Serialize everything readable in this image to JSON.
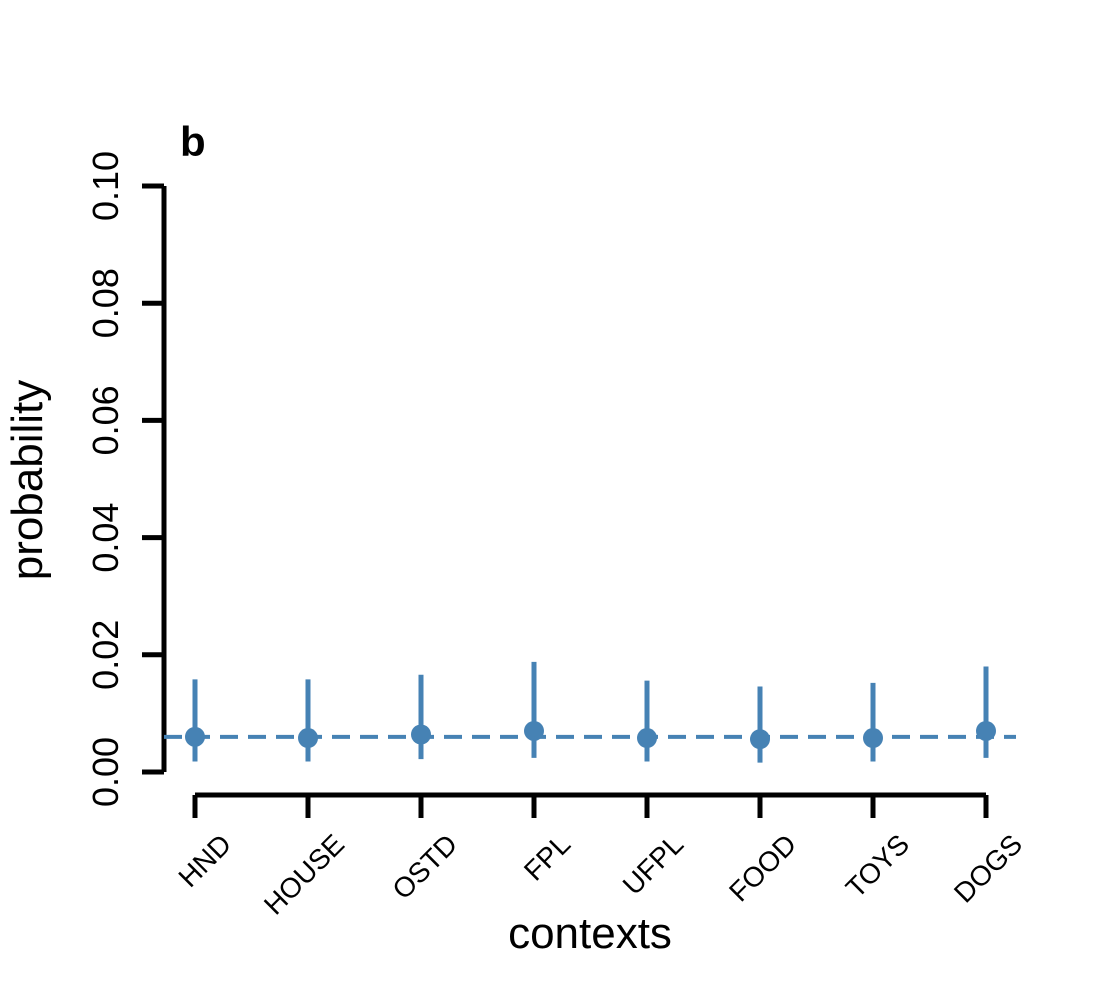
{
  "chart_data": {
    "type": "scatter",
    "panel_label": "b",
    "xlabel": "contexts",
    "ylabel": "probability",
    "ylim": [
      0,
      0.1
    ],
    "yticks": [
      "0.00",
      "0.02",
      "0.04",
      "0.06",
      "0.08",
      "0.10"
    ],
    "categories": [
      "HND",
      "HOUSE",
      "OSTD",
      "FPL",
      "UFPL",
      "FOOD",
      "TOYS",
      "DOGS"
    ],
    "values": [
      0.006,
      0.0058,
      0.0064,
      0.007,
      0.0058,
      0.0056,
      0.0058,
      0.007
    ],
    "lower": [
      0.0018,
      0.0018,
      0.0022,
      0.0024,
      0.0018,
      0.0016,
      0.0018,
      0.0024
    ],
    "upper": [
      0.0158,
      0.0158,
      0.0166,
      0.0188,
      0.0156,
      0.0146,
      0.0152,
      0.018
    ],
    "reference_line": 0.006,
    "reference_style": "dashed",
    "color": "#4682b4",
    "grid": false
  }
}
